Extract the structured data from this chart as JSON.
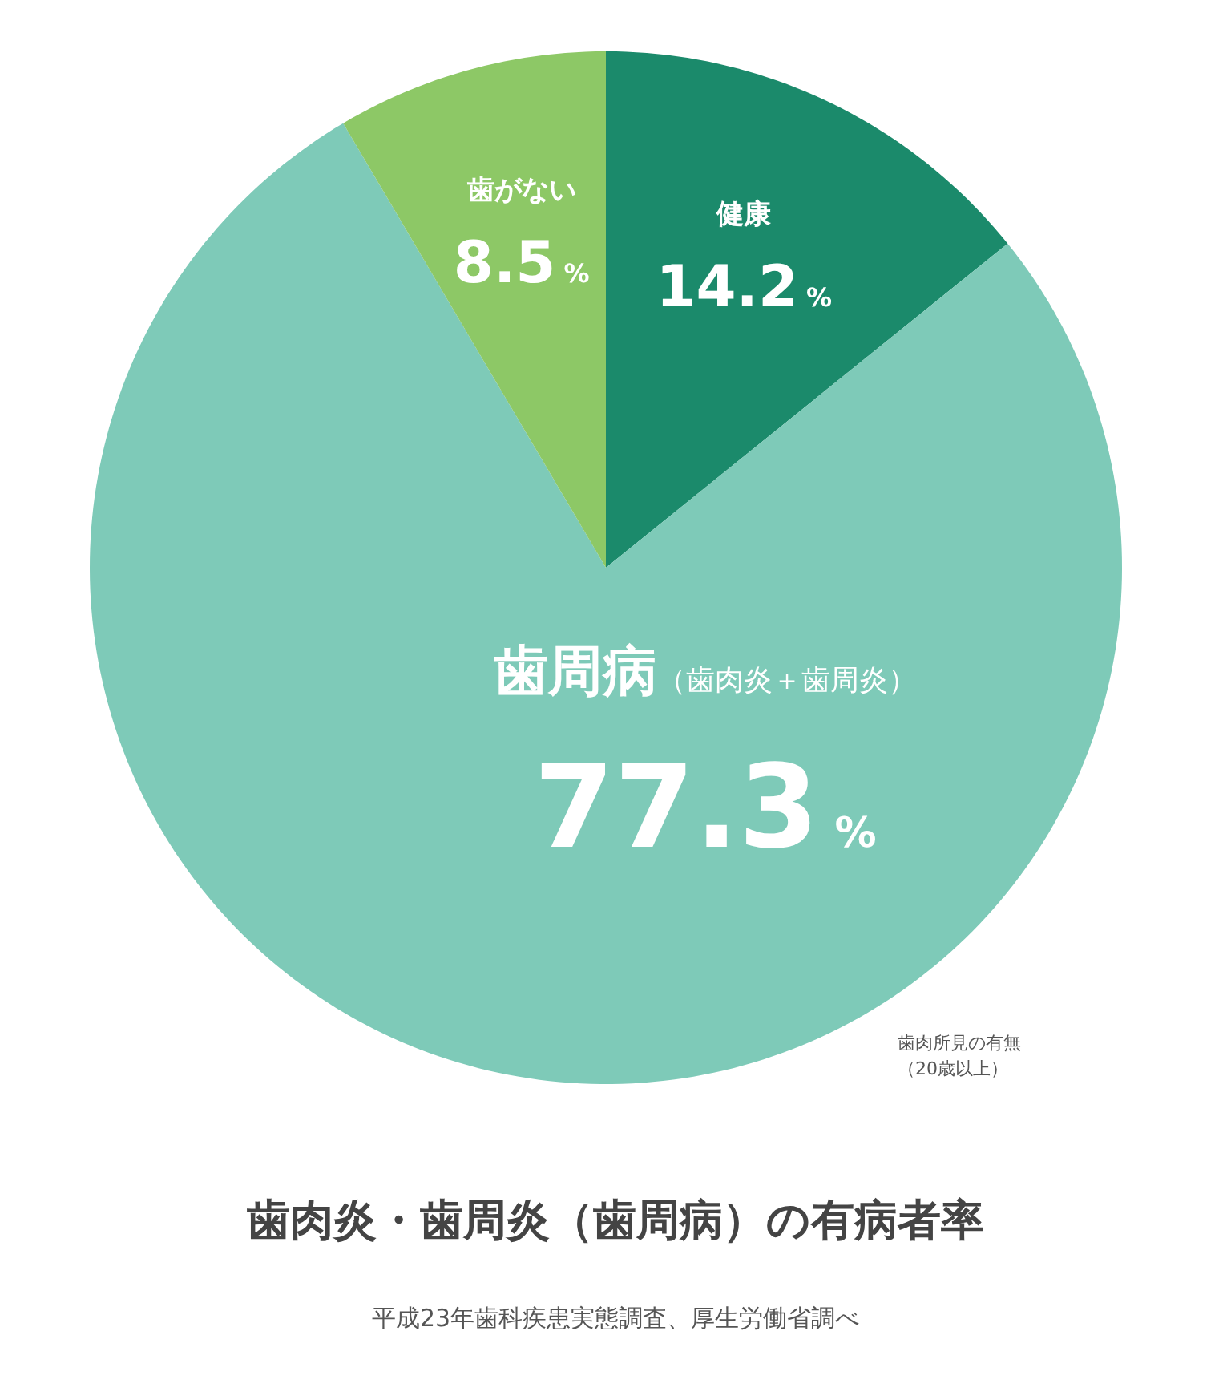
{
  "chart_data": {
    "type": "pie",
    "title": "歯肉炎・歯周炎（歯周病）の有病者率",
    "subtitle": "平成23年歯科疾患実態調査、厚生労働省調べ",
    "categories": [
      "健康",
      "歯周病（歯肉炎＋歯周炎）",
      "歯がない"
    ],
    "values": [
      14.2,
      77.3,
      8.5
    ],
    "colors": [
      "#1b8a6b",
      "#7ecab8",
      "#8dc866"
    ],
    "value_labels": [
      "14.2%",
      "77.3%",
      "8.5%"
    ],
    "annotations": [
      "歯肉所見の有無",
      "（20歳以上）"
    ]
  }
}
